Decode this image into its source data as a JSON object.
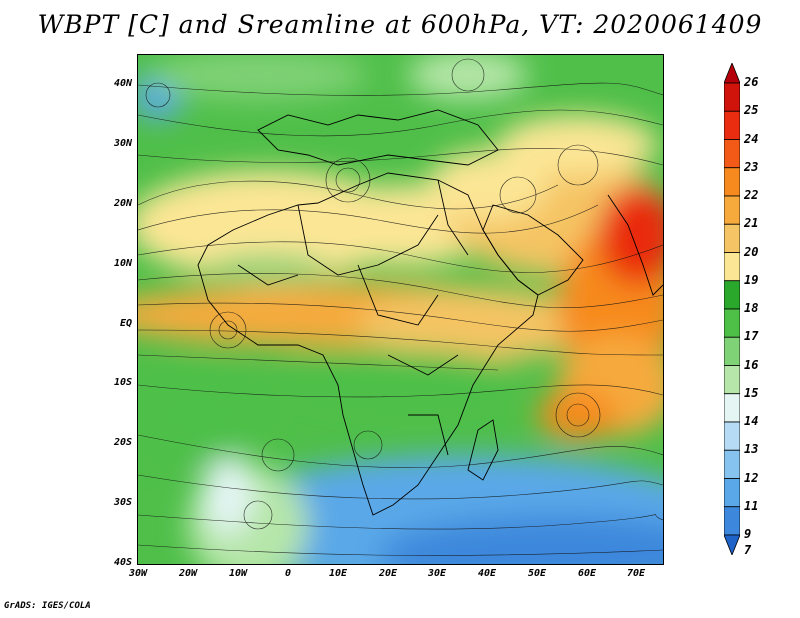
{
  "title": "WBPT [C] and Sreamline at 600hPa, VT: 2020061409",
  "credit": "GrADS: IGES/COLA",
  "latitude_labels": [
    "40N",
    "30N",
    "20N",
    "10N",
    "EQ",
    "10S",
    "20S",
    "30S",
    "40S"
  ],
  "longitude_labels": [
    "30W",
    "20W",
    "10W",
    "0",
    "10E",
    "20E",
    "30E",
    "40E",
    "50E",
    "60E",
    "70E"
  ],
  "colorbar": {
    "labels": [
      "26",
      "25",
      "24",
      "23",
      "22",
      "21",
      "20",
      "19",
      "18",
      "17",
      "16",
      "15",
      "14",
      "13",
      "12",
      "11",
      "9",
      "7"
    ],
    "colors": [
      "#b5000b",
      "#d0140c",
      "#ea2c10",
      "#f35a17",
      "#f78a1e",
      "#f6aa3c",
      "#f5c464",
      "#fbe695",
      "#2aa82c",
      "#4ec048",
      "#80d276",
      "#b6e6a9",
      "#e4f5f4",
      "#b5dcf4",
      "#86c4ef",
      "#5aa8e8",
      "#3d88dc",
      "#1f63c9"
    ]
  },
  "field_colors": {
    "cool_blue": "#3d88dc",
    "green": "#4ec048",
    "warm_yellow": "#fbe695",
    "warm_orange": "#f6aa3c",
    "hot_red": "#ea2c10"
  }
}
